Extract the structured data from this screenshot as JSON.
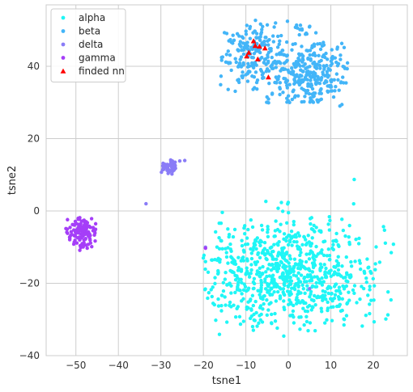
{
  "chart_data": {
    "type": "scatter",
    "xlabel": "tsne1",
    "ylabel": "tsne2",
    "xlim": [
      -57,
      28
    ],
    "ylim": [
      -40,
      57
    ],
    "x_ticks": [
      -50,
      -40,
      -30,
      -20,
      -10,
      0,
      10,
      20
    ],
    "y_ticks": [
      -40,
      -20,
      0,
      20,
      40
    ],
    "grid": true,
    "legend_position": "top-left",
    "series": [
      {
        "name": "alpha",
        "color": "#1ff6f6",
        "marker": "circle",
        "clusters": [
          {
            "cx": 0,
            "cy": -17,
            "sx": 11,
            "sy": 7.5,
            "n": 820,
            "xmin": -20,
            "xmax": 25,
            "ymin": -35,
            "ymax": 3
          }
        ],
        "points": [
          [
            15.5,
            8.7
          ],
          [
            -20,
            -13
          ],
          [
            -19.5,
            -14
          ]
        ]
      },
      {
        "name": "beta",
        "color": "#43b5f8",
        "marker": "circle",
        "clusters": [
          {
            "cx": -8,
            "cy": 43,
            "sx": 4.2,
            "sy": 5,
            "n": 200,
            "xmin": -16,
            "xmax": 0,
            "ymin": 32,
            "ymax": 53
          },
          {
            "cx": 5,
            "cy": 38,
            "sx": 5,
            "sy": 5,
            "n": 300,
            "xmin": -7,
            "xmax": 14,
            "ymin": 28,
            "ymax": 47
          },
          {
            "cx": 3.5,
            "cy": 50,
            "sx": 1.5,
            "sy": 1,
            "n": 15,
            "xmin": 1,
            "xmax": 7,
            "ymin": 48,
            "ymax": 52
          }
        ],
        "points": []
      },
      {
        "name": "delta",
        "color": "#8a7cf7",
        "marker": "circle",
        "clusters": [
          {
            "cx": -27.5,
            "cy": 12.5,
            "sx": 1.3,
            "sy": 1,
            "n": 45,
            "xmin": -31,
            "xmax": -24,
            "ymin": 10,
            "ymax": 15.5
          }
        ],
        "points": [
          [
            -33.5,
            2
          ],
          [
            -19.5,
            -10
          ],
          [
            5,
            -21.5
          ]
        ]
      },
      {
        "name": "gamma",
        "color": "#a53ef8",
        "marker": "circle",
        "clusters": [
          {
            "cx": -48.5,
            "cy": -6,
            "sx": 1.8,
            "sy": 2,
            "n": 130,
            "xmin": -52.5,
            "xmax": -45,
            "ymin": -11,
            "ymax": -1.5
          }
        ],
        "points": [
          [
            -19.5,
            -10.3
          ]
        ]
      },
      {
        "name": "finded nn",
        "color": "#ff0000",
        "marker": "triangle",
        "clusters": [],
        "points": [
          [
            -8.2,
            47
          ],
          [
            -7.8,
            45.7
          ],
          [
            -6.8,
            45.5
          ],
          [
            -5.5,
            45
          ],
          [
            -9.3,
            43.8
          ],
          [
            -9.8,
            42.8
          ],
          [
            -7.2,
            42
          ],
          [
            -4.7,
            37
          ]
        ]
      }
    ]
  }
}
